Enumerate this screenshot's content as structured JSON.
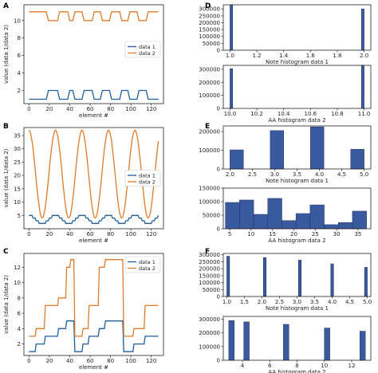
{
  "panels": [
    {
      "id": "A",
      "label": "A"
    },
    {
      "id": "B",
      "label": "B"
    },
    {
      "id": "C",
      "label": "C"
    },
    {
      "id": "D",
      "label": "D"
    },
    {
      "id": "E",
      "label": "E"
    },
    {
      "id": "F",
      "label": "F"
    }
  ],
  "colors": {
    "data1": "#1f5fa0",
    "data2": "#e07b2a",
    "hist": "#3a5aa0"
  },
  "chart_data": [
    {
      "panel": "A",
      "type": "line",
      "xlabel": "element #",
      "ylabel": "value (data 1/data 2)",
      "xlim": [
        -5,
        132
      ],
      "ylim": [
        0.5,
        11.8
      ],
      "xticks": [
        0,
        20,
        40,
        60,
        80,
        100,
        120
      ],
      "yticks": [
        2,
        4,
        6,
        8,
        10
      ],
      "legend": {
        "position": "center-right",
        "entries": [
          "data 1",
          "data 2"
        ]
      },
      "series": [
        {
          "name": "data 1",
          "points": [
            [
              0,
              1
            ],
            [
              17,
              1
            ],
            [
              19,
              2
            ],
            [
              28,
              2
            ],
            [
              30,
              1
            ],
            [
              38,
              1
            ],
            [
              40,
              2
            ],
            [
              43,
              2
            ],
            [
              45,
              1
            ],
            [
              52,
              1
            ],
            [
              54,
              2
            ],
            [
              62,
              2
            ],
            [
              64,
              1
            ],
            [
              70,
              1
            ],
            [
              72,
              2
            ],
            [
              79,
              2
            ],
            [
              81,
              1
            ],
            [
              89,
              1
            ],
            [
              91,
              2
            ],
            [
              97,
              2
            ],
            [
              99,
              1
            ],
            [
              106,
              1
            ],
            [
              108,
              2
            ],
            [
              115,
              2
            ],
            [
              117,
              1
            ],
            [
              127,
              1
            ]
          ]
        },
        {
          "name": "data 2",
          "points": [
            [
              0,
              11
            ],
            [
              17,
              11
            ],
            [
              19,
              10
            ],
            [
              28,
              10
            ],
            [
              30,
              11
            ],
            [
              38,
              11
            ],
            [
              40,
              10
            ],
            [
              43,
              10
            ],
            [
              45,
              11
            ],
            [
              52,
              11
            ],
            [
              54,
              10
            ],
            [
              62,
              10
            ],
            [
              64,
              11
            ],
            [
              70,
              11
            ],
            [
              72,
              10
            ],
            [
              79,
              10
            ],
            [
              81,
              11
            ],
            [
              89,
              11
            ],
            [
              91,
              10
            ],
            [
              97,
              10
            ],
            [
              99,
              11
            ],
            [
              106,
              11
            ],
            [
              108,
              10
            ],
            [
              115,
              10
            ],
            [
              117,
              11
            ],
            [
              127,
              11
            ]
          ]
        }
      ]
    },
    {
      "panel": "B",
      "type": "line",
      "xlabel": "element #",
      "ylabel": "value (data 1/data 2)",
      "xlim": [
        -5,
        132
      ],
      "ylim": [
        0,
        38
      ],
      "xticks": [
        0,
        20,
        40,
        60,
        80,
        100,
        120
      ],
      "yticks": [
        5,
        10,
        15,
        20,
        25,
        30,
        35
      ],
      "legend": {
        "position": "center-right",
        "entries": [
          "data 1",
          "data 2"
        ]
      },
      "series": [
        {
          "name": "data 1",
          "wave": {
            "min": 2,
            "max": 5,
            "period": 26,
            "phase": 0
          }
        },
        {
          "name": "data 2",
          "wave": {
            "min": 4,
            "max": 37,
            "period": 26,
            "phase": 0
          }
        }
      ]
    },
    {
      "panel": "C",
      "type": "line",
      "xlabel": "element #",
      "ylabel": "value (data 1/data 2)",
      "xlim": [
        -5,
        132
      ],
      "ylim": [
        0.5,
        13.8
      ],
      "xticks": [
        0,
        20,
        40,
        60,
        80,
        100,
        120
      ],
      "yticks": [
        2,
        4,
        6,
        8,
        10,
        12
      ],
      "legend": {
        "position": "top-right",
        "entries": [
          "data 1",
          "data 2"
        ]
      },
      "series": [
        {
          "name": "data 1",
          "points": [
            [
              0,
              1
            ],
            [
              6,
              1
            ],
            [
              7,
              2
            ],
            [
              15,
              2
            ],
            [
              16,
              3
            ],
            [
              28,
              3
            ],
            [
              29,
              4
            ],
            [
              36,
              4
            ],
            [
              37,
              5
            ],
            [
              44,
              5
            ],
            [
              45,
              1
            ],
            [
              52,
              1
            ],
            [
              53,
              2
            ],
            [
              58,
              2
            ],
            [
              59,
              3
            ],
            [
              68,
              3
            ],
            [
              69,
              4
            ],
            [
              74,
              4
            ],
            [
              75,
              5
            ],
            [
              92,
              5
            ],
            [
              93,
              1
            ],
            [
              102,
              1
            ],
            [
              103,
              2
            ],
            [
              113,
              2
            ],
            [
              114,
              3
            ],
            [
              127,
              3
            ]
          ]
        },
        {
          "name": "data 2",
          "points": [
            [
              0,
              3
            ],
            [
              6,
              3
            ],
            [
              7,
              4
            ],
            [
              15,
              4
            ],
            [
              16,
              7
            ],
            [
              28,
              7
            ],
            [
              29,
              8
            ],
            [
              36,
              8
            ],
            [
              37,
              12
            ],
            [
              40,
              12
            ],
            [
              41,
              13
            ],
            [
              44,
              13
            ],
            [
              45,
              3
            ],
            [
              52,
              3
            ],
            [
              53,
              4
            ],
            [
              58,
              4
            ],
            [
              59,
              7
            ],
            [
              68,
              7
            ],
            [
              69,
              12
            ],
            [
              74,
              12
            ],
            [
              75,
              13
            ],
            [
              92,
              13
            ],
            [
              93,
              3
            ],
            [
              102,
              3
            ],
            [
              103,
              4
            ],
            [
              113,
              4
            ],
            [
              114,
              7
            ],
            [
              127,
              7
            ]
          ]
        }
      ]
    },
    {
      "panel": "D",
      "type": "bar",
      "sub": "top",
      "xlabel": "Note histogram  data 1",
      "xlim": [
        0.95,
        2.05
      ],
      "ylim": [
        0,
        330000
      ],
      "xticks": [
        1.0,
        1.2,
        1.4,
        1.6,
        1.8,
        2.0
      ],
      "xticklabels": [
        "1.0",
        "1.2",
        "1.4",
        "1.6",
        "1.8",
        "2.0"
      ],
      "yticks": [
        0,
        50000,
        100000,
        150000,
        200000,
        250000,
        300000
      ],
      "bins": [
        [
          1.0,
          1.02,
          330000
        ],
        [
          1.98,
          2.0,
          300000
        ]
      ]
    },
    {
      "panel": "D",
      "type": "bar",
      "sub": "bottom",
      "xlabel": "AA histogram  data 2",
      "xlim": [
        9.95,
        11.05
      ],
      "ylim": [
        0,
        330000
      ],
      "xticks": [
        10.0,
        10.2,
        10.4,
        10.6,
        10.8,
        11.0
      ],
      "xticklabels": [
        "10.0",
        "10.2",
        "10.4",
        "10.6",
        "10.8",
        "11.0"
      ],
      "yticks": [
        0,
        100000,
        200000,
        300000
      ],
      "bins": [
        [
          10.0,
          10.02,
          305000
        ],
        [
          10.98,
          11.0,
          330000
        ]
      ]
    },
    {
      "panel": "E",
      "type": "bar",
      "sub": "top",
      "xlabel": "Note histogram  data 1",
      "xlim": [
        1.85,
        5.15
      ],
      "ylim": [
        0,
        230000
      ],
      "xticks": [
        2.0,
        2.5,
        3.0,
        3.5,
        4.0,
        4.5,
        5.0
      ],
      "xticklabels": [
        "2.0",
        "2.5",
        "3.0",
        "3.5",
        "4.0",
        "4.5",
        "5.0"
      ],
      "yticks": [
        0,
        100000,
        200000
      ],
      "bins": [
        [
          2.0,
          2.3,
          102000
        ],
        [
          2.9,
          3.2,
          205000
        ],
        [
          3.8,
          4.1,
          225000
        ],
        [
          4.7,
          5.0,
          105000
        ]
      ]
    },
    {
      "panel": "E",
      "type": "bar",
      "sub": "bottom",
      "xlabel": "AA histogram  data 2",
      "xlim": [
        3.5,
        38
      ],
      "ylim": [
        0,
        150000
      ],
      "xticks": [
        5,
        10,
        15,
        20,
        25,
        30,
        35
      ],
      "xticklabels": [
        "5",
        "10",
        "15",
        "20",
        "25",
        "30",
        "35"
      ],
      "yticks": [
        0,
        50000,
        100000,
        150000
      ],
      "bins": [
        [
          4,
          7.3,
          97000
        ],
        [
          7.3,
          10.6,
          106000
        ],
        [
          10.6,
          13.9,
          53000
        ],
        [
          13.9,
          17.2,
          112000
        ],
        [
          17.2,
          20.5,
          30000
        ],
        [
          20.5,
          23.8,
          56000
        ],
        [
          23.8,
          27.1,
          88000
        ],
        [
          27.1,
          30.4,
          15000
        ],
        [
          30.4,
          33.7,
          23000
        ],
        [
          33.7,
          37,
          65000
        ]
      ]
    },
    {
      "panel": "F",
      "type": "bar",
      "sub": "top",
      "xlabel": "Note histogram  data 1",
      "xlim": [
        0.9,
        5.1
      ],
      "ylim": [
        0,
        310000
      ],
      "xticks": [
        1.0,
        1.5,
        2.0,
        2.5,
        3.0,
        3.5,
        4.0,
        4.5,
        5.0
      ],
      "xticklabels": [
        "1.0",
        "1.5",
        "2.0",
        "2.5",
        "3.0",
        "3.5",
        "4.0",
        "4.5",
        "5.0"
      ],
      "yticks": [
        0,
        50000,
        100000,
        150000,
        200000,
        250000,
        300000
      ],
      "bins": [
        [
          1.0,
          1.08,
          290000
        ],
        [
          2.04,
          2.12,
          280000
        ],
        [
          3.04,
          3.12,
          262000
        ],
        [
          3.96,
          4.04,
          235000
        ],
        [
          4.92,
          5.0,
          210000
        ]
      ]
    },
    {
      "panel": "F",
      "type": "bar",
      "sub": "bottom",
      "xlabel": "AA histogram  data 2",
      "xlim": [
        2.6,
        13.4
      ],
      "ylim": [
        0,
        320000
      ],
      "xticks": [
        4,
        6,
        8,
        10,
        12
      ],
      "xticklabels": [
        "4",
        "6",
        "8",
        "10",
        "12"
      ],
      "yticks": [
        0,
        100000,
        200000,
        300000
      ],
      "bins": [
        [
          3,
          3.4,
          290000
        ],
        [
          4.1,
          4.5,
          280000
        ],
        [
          7.0,
          7.4,
          262000
        ],
        [
          10.0,
          10.4,
          235000
        ],
        [
          12.6,
          13.0,
          212000
        ]
      ]
    }
  ]
}
